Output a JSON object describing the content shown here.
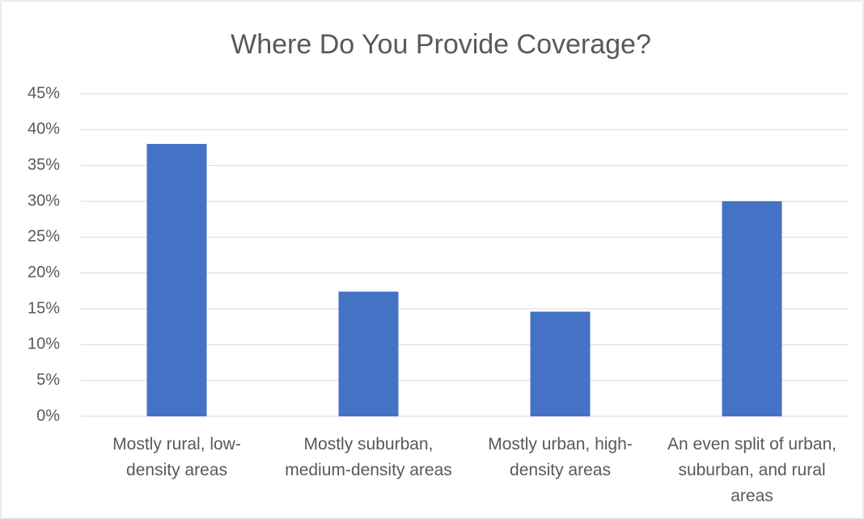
{
  "chart_data": {
    "type": "bar",
    "title": "Where Do You Provide Coverage?",
    "categories": [
      "Mostly rural, low-density areas",
      "Mostly suburban, medium-density areas",
      "Mostly urban, high-density areas",
      "An even split of urban, suburban, and rural areas"
    ],
    "values": [
      38,
      17.4,
      14.6,
      30
    ],
    "color": "#4472c4",
    "ylim": [
      0,
      45
    ],
    "yticks": [
      {
        "value": 0,
        "label": "0%"
      },
      {
        "value": 5,
        "label": "5%"
      },
      {
        "value": 10,
        "label": "10%"
      },
      {
        "value": 15,
        "label": "15%"
      },
      {
        "value": 20,
        "label": "20%"
      },
      {
        "value": 25,
        "label": "25%"
      },
      {
        "value": 30,
        "label": "30%"
      },
      {
        "value": 35,
        "label": "35%"
      },
      {
        "value": 40,
        "label": "40%"
      },
      {
        "value": 45,
        "label": "45%"
      }
    ],
    "grid": true
  }
}
